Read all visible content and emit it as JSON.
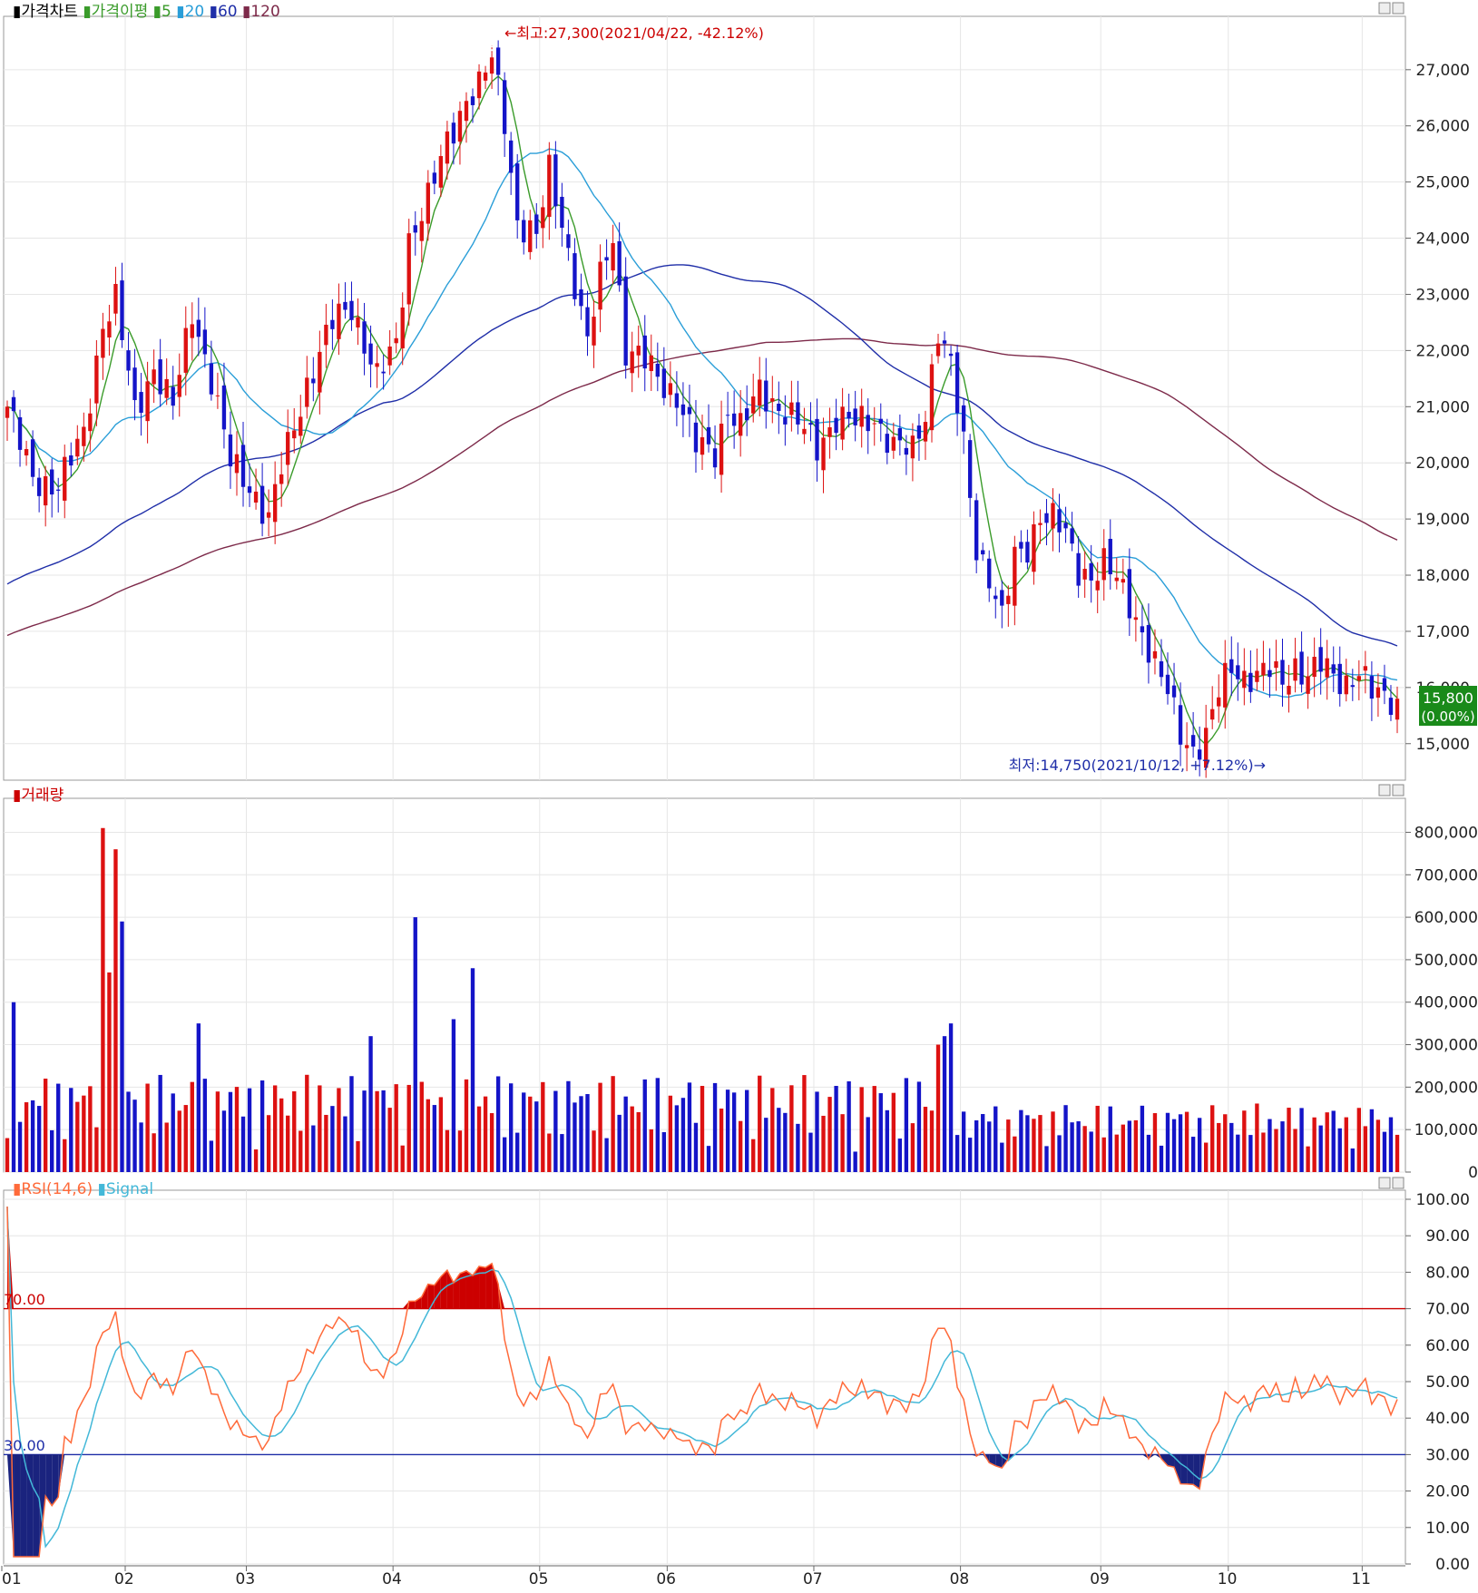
{
  "panels": {
    "price": {
      "legend": [
        {
          "text": "가격차트",
          "color": "#000000"
        },
        {
          "text": "가격이평",
          "color": "#3a9b2a"
        },
        {
          "text": "5",
          "color": "#3a9b2a"
        },
        {
          "text": "20",
          "color": "#2a9ed8"
        },
        {
          "text": "60",
          "color": "#1f2ea8"
        },
        {
          "text": "120",
          "color": "#7d2a4a"
        }
      ],
      "high_label": "←최고:27,300(2021/04/22, -42.12%)",
      "low_label": "최저:14,750(2021/10/12, +7.12%)→",
      "current_price": "15,800",
      "current_change": "(0.00%)"
    },
    "volume": {
      "legend": [
        {
          "text": "거래량",
          "color": "#cc0000"
        }
      ]
    },
    "rsi": {
      "legend": [
        {
          "text": "RSI(14,6)",
          "color": "#ff6a3a"
        },
        {
          "text": "Signal",
          "color": "#43b8d8"
        }
      ],
      "upper_label": "70.00",
      "lower_label": "30.00"
    }
  },
  "chart_data": [
    {
      "type": "candlestick",
      "panel": "price",
      "y_ticks": [
        "27,000",
        "26,000",
        "25,000",
        "24,000",
        "23,000",
        "22,000",
        "21,000",
        "20,000",
        "19,000",
        "18,000",
        "17,000",
        "16,000",
        "15,000"
      ],
      "ylim": [
        14350,
        27950
      ],
      "x_ticks": [
        "01",
        "02",
        "03",
        "04",
        "05",
        "06",
        "07",
        "08",
        "09",
        "10",
        "11"
      ],
      "month_starts": [
        0,
        19,
        38,
        61,
        84,
        104,
        127,
        150,
        172,
        192,
        213
      ],
      "trading_days": 219,
      "high": {
        "value": 27300,
        "date": "2021/04/22"
      },
      "low": {
        "value": 14750,
        "date": "2021/10/12"
      },
      "last_close": 15800,
      "moving_averages": [
        {
          "name": "5",
          "color": "#3a9b2a"
        },
        {
          "name": "20",
          "color": "#2a9ed8"
        },
        {
          "name": "60",
          "color": "#1f2ea8"
        },
        {
          "name": "120",
          "color": "#7d2a4a"
        }
      ]
    },
    {
      "type": "bar",
      "panel": "volume",
      "y_ticks": [
        "800,000",
        "700,000",
        "600,000",
        "500,000",
        "400,000",
        "300,000",
        "200,000",
        "100,000",
        "0"
      ],
      "ylim": [
        0,
        880000
      ]
    },
    {
      "type": "line",
      "panel": "rsi",
      "y_ticks": [
        "100.00",
        "90.00",
        "80.00",
        "70.00",
        "60.00",
        "50.00",
        "40.00",
        "30.00",
        "20.00",
        "10.00",
        "0.00"
      ],
      "ylim": [
        0,
        100
      ],
      "upper": 70,
      "lower": 30,
      "series": [
        {
          "name": "RSI(14,6)",
          "color": "#ff6a3a"
        },
        {
          "name": "Signal",
          "color": "#43b8d8"
        }
      ]
    }
  ]
}
